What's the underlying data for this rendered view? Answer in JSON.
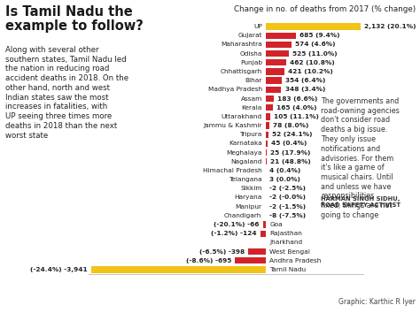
{
  "chart_data": {
    "type": "bar",
    "orientation": "horizontal",
    "title": "Is Tamil Nadu the example to follow?",
    "subtitle": "Along with several other southern states, Tamil Nadu led the nation in reducing road accident deaths in 2018. On the other hand, north and west Indian states saw the most increases in fatalities, with UP seeing three times more deaths in 2018 than the next worst state",
    "xlabel": "Change in no. of deaths from 2017 (% change)",
    "annotations": [
      "The governments and road-owning agencies don't consider road deaths a big issue. They only issue notifications and advisories. For them it's like a game of musical chairs. Until and unless we have responsibilities fixed, things are not going to change",
      "HARMAN SINGH SIDHU, ROAD SAFETY ACTIVIST",
      "Graphic: Karthic R Iyer"
    ],
    "categories": [
      "UP",
      "Gujarat",
      "Maharashtra",
      "Odisha",
      "Punjab",
      "Chhattisgarh",
      "Bihar",
      "Madhya Pradesh",
      "Assam",
      "Kerala",
      "Uttarakhand",
      "Jammu & Kashmir",
      "Tripura",
      "Karnataka",
      "Meghalaya",
      "Nagaland",
      "Himachal Pradesh",
      "Telangana",
      "Sikkim",
      "Haryana",
      "Manipur",
      "Chandigarh",
      "Goa",
      "Rajasthan",
      "Jharkhand",
      "West Bengal",
      "Andhra Pradesh",
      "Tamil Nadu"
    ],
    "values": [
      2132,
      685,
      574,
      525,
      462,
      421,
      354,
      348,
      183,
      165,
      105,
      78,
      52,
      45,
      25,
      21,
      4,
      3,
      -2,
      -2,
      -2,
      -8,
      -66,
      -124,
      -5,
      -398,
      -695,
      -3941
    ],
    "value_labels": [
      "2,132 (20.1%)",
      "685 (9.4%)",
      "574 (4.6%)",
      "525 (11.0%)",
      "462 (10.8%)",
      "421 (10.2%)",
      "354 (6.4%)",
      "348 (3.4%)",
      "183 (6.6%)",
      "165 (4.0%)",
      "105 (11.1%)",
      "78 (8.0%)",
      "52 (24.1%)",
      "45 (0.4%)",
      "25 (17.9%)",
      "21 (48.8%)",
      "4 (0.4%)",
      "3 (0.0%)",
      "-2 (-2.5%)",
      "-2 (-0.0%)",
      "-2 (-1.5%)",
      "-8 (-7.5%)",
      "(-20.1%) -66",
      "(-1.2%) -124",
      null,
      "(-6.5%) -398",
      "(-8.6%) -695",
      "(-24.4%) -3,941"
    ],
    "colors": [
      "#f2c318",
      "#d2232a",
      "#d2232a",
      "#d2232a",
      "#d2232a",
      "#d2232a",
      "#d2232a",
      "#d2232a",
      "#d2232a",
      "#d2232a",
      "#d2232a",
      "#d2232a",
      "#d2232a",
      "#d2232a",
      "#d2232a",
      "#d2232a",
      "#d2232a",
      "#d2232a",
      "#d2232a",
      "#d2232a",
      "#d2232a",
      "#d2232a",
      "#d2232a",
      "#d2232a",
      "#d2232a",
      "#d2232a",
      "#d2232a",
      "#f2c318"
    ],
    "xlim": [
      -4000,
      2200
    ],
    "tick_labels": false,
    "data_labels": true,
    "grid": false
  }
}
